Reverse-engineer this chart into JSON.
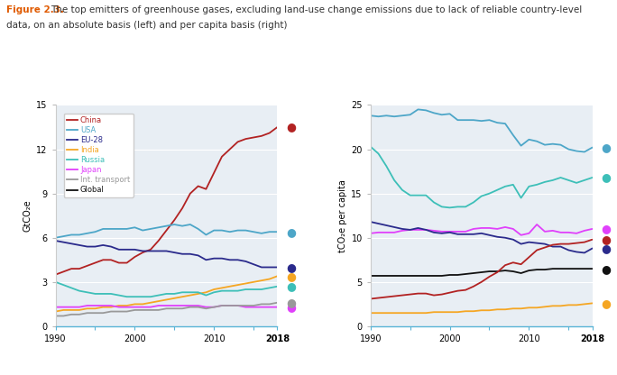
{
  "title_bold": "Figure 2.3.",
  "title_rest": " The top emitters of greenhouse gases, excluding land-use change emissions due to lack of reliable country-level\ndata, on an absolute basis (left) and per capita basis (right)",
  "years": [
    1990,
    1991,
    1992,
    1993,
    1994,
    1995,
    1996,
    1997,
    1998,
    1999,
    2000,
    2001,
    2002,
    2003,
    2004,
    2005,
    2006,
    2007,
    2008,
    2009,
    2010,
    2011,
    2012,
    2013,
    2014,
    2015,
    2016,
    2017,
    2018
  ],
  "left": {
    "ylabel": "GtCO₂e",
    "ylim": [
      0,
      15
    ],
    "yticks": [
      0,
      3,
      6,
      9,
      12,
      15
    ],
    "China": [
      3.5,
      3.7,
      3.9,
      3.9,
      4.1,
      4.3,
      4.5,
      4.5,
      4.3,
      4.3,
      4.7,
      5.0,
      5.2,
      5.8,
      6.5,
      7.2,
      8.0,
      9.0,
      9.5,
      9.3,
      10.4,
      11.5,
      12.0,
      12.5,
      12.7,
      12.8,
      12.9,
      13.1,
      13.5
    ],
    "USA": [
      6.0,
      6.1,
      6.2,
      6.2,
      6.3,
      6.4,
      6.6,
      6.6,
      6.6,
      6.6,
      6.7,
      6.5,
      6.6,
      6.7,
      6.8,
      6.9,
      6.8,
      6.9,
      6.6,
      6.2,
      6.5,
      6.5,
      6.4,
      6.5,
      6.5,
      6.4,
      6.3,
      6.4,
      6.4
    ],
    "EU28": [
      5.8,
      5.7,
      5.6,
      5.5,
      5.4,
      5.4,
      5.5,
      5.4,
      5.2,
      5.2,
      5.2,
      5.1,
      5.1,
      5.1,
      5.1,
      5.0,
      4.9,
      4.9,
      4.8,
      4.5,
      4.6,
      4.6,
      4.5,
      4.5,
      4.4,
      4.2,
      4.0,
      4.0,
      4.0
    ],
    "India": [
      1.0,
      1.1,
      1.1,
      1.1,
      1.2,
      1.2,
      1.3,
      1.3,
      1.4,
      1.4,
      1.5,
      1.5,
      1.6,
      1.7,
      1.8,
      1.9,
      2.0,
      2.1,
      2.2,
      2.3,
      2.5,
      2.6,
      2.7,
      2.8,
      2.9,
      3.0,
      3.1,
      3.2,
      3.4
    ],
    "Russia": [
      3.0,
      2.8,
      2.6,
      2.4,
      2.3,
      2.2,
      2.2,
      2.2,
      2.1,
      2.0,
      2.0,
      2.0,
      2.0,
      2.1,
      2.2,
      2.2,
      2.3,
      2.3,
      2.3,
      2.1,
      2.3,
      2.4,
      2.4,
      2.4,
      2.5,
      2.5,
      2.5,
      2.6,
      2.7
    ],
    "Japan": [
      1.3,
      1.3,
      1.3,
      1.3,
      1.4,
      1.4,
      1.4,
      1.4,
      1.3,
      1.3,
      1.3,
      1.3,
      1.3,
      1.4,
      1.4,
      1.4,
      1.4,
      1.4,
      1.4,
      1.3,
      1.3,
      1.4,
      1.4,
      1.4,
      1.3,
      1.3,
      1.3,
      1.3,
      1.3
    ],
    "IntTrans": [
      0.7,
      0.7,
      0.8,
      0.8,
      0.9,
      0.9,
      0.9,
      1.0,
      1.0,
      1.0,
      1.1,
      1.1,
      1.1,
      1.1,
      1.2,
      1.2,
      1.2,
      1.3,
      1.3,
      1.2,
      1.3,
      1.4,
      1.4,
      1.4,
      1.4,
      1.4,
      1.5,
      1.5,
      1.6
    ]
  },
  "right": {
    "ylabel": "tCO₂e per capita",
    "ylim": [
      0,
      25
    ],
    "yticks": [
      0,
      5,
      10,
      15,
      20,
      25
    ],
    "USA": [
      23.8,
      23.7,
      23.8,
      23.7,
      23.8,
      23.9,
      24.5,
      24.4,
      24.1,
      23.9,
      24.0,
      23.3,
      23.3,
      23.3,
      23.2,
      23.3,
      23.0,
      22.9,
      21.6,
      20.4,
      21.1,
      20.9,
      20.5,
      20.6,
      20.5,
      20.0,
      19.8,
      19.7,
      20.2
    ],
    "Russia": [
      20.3,
      19.5,
      18.1,
      16.5,
      15.4,
      14.8,
      14.8,
      14.8,
      14.0,
      13.5,
      13.4,
      13.5,
      13.5,
      14.0,
      14.7,
      15.0,
      15.4,
      15.8,
      16.0,
      14.5,
      15.8,
      16.0,
      16.3,
      16.5,
      16.8,
      16.5,
      16.2,
      16.5,
      16.8
    ],
    "Japan": [
      10.5,
      10.6,
      10.6,
      10.6,
      10.8,
      10.9,
      10.9,
      10.9,
      10.8,
      10.7,
      10.7,
      10.7,
      10.7,
      11.0,
      11.1,
      11.1,
      11.0,
      11.2,
      11.0,
      10.3,
      10.5,
      11.5,
      10.7,
      10.8,
      10.6,
      10.6,
      10.5,
      10.8,
      11.0
    ],
    "EU28": [
      11.8,
      11.6,
      11.4,
      11.2,
      11.0,
      10.9,
      11.1,
      10.9,
      10.6,
      10.5,
      10.6,
      10.4,
      10.4,
      10.4,
      10.5,
      10.3,
      10.1,
      10.0,
      9.8,
      9.3,
      9.5,
      9.4,
      9.3,
      9.0,
      9.0,
      8.6,
      8.4,
      8.3,
      8.8
    ],
    "Global": [
      5.7,
      5.7,
      5.7,
      5.7,
      5.7,
      5.7,
      5.7,
      5.7,
      5.7,
      5.7,
      5.8,
      5.8,
      5.9,
      6.0,
      6.1,
      6.2,
      6.2,
      6.3,
      6.2,
      6.0,
      6.3,
      6.4,
      6.4,
      6.5,
      6.5,
      6.5,
      6.5,
      6.5,
      6.5
    ],
    "China": [
      3.1,
      3.2,
      3.3,
      3.4,
      3.5,
      3.6,
      3.7,
      3.7,
      3.5,
      3.6,
      3.8,
      4.0,
      4.1,
      4.5,
      5.0,
      5.6,
      6.1,
      6.9,
      7.2,
      7.0,
      7.8,
      8.6,
      8.9,
      9.2,
      9.3,
      9.3,
      9.4,
      9.5,
      9.8
    ],
    "India": [
      1.5,
      1.5,
      1.5,
      1.5,
      1.5,
      1.5,
      1.5,
      1.5,
      1.6,
      1.6,
      1.6,
      1.6,
      1.7,
      1.7,
      1.8,
      1.8,
      1.9,
      1.9,
      2.0,
      2.0,
      2.1,
      2.1,
      2.2,
      2.3,
      2.3,
      2.4,
      2.4,
      2.5,
      2.6
    ]
  },
  "colors": {
    "China": "#b22222",
    "USA": "#4da6c8",
    "EU28": "#2b2b8c",
    "India": "#f5a623",
    "Russia": "#3dbfb8",
    "Japan": "#e040fb",
    "IntTrans": "#999999",
    "Global": "#111111"
  },
  "legend_labels": {
    "China": "China",
    "USA": "USA",
    "EU28": "EU-28",
    "India": "India",
    "Russia": "Russia",
    "Japan": "Japan",
    "IntTrans": "Int. transport",
    "Global": "Global"
  },
  "legend_colors_text": {
    "China": "#b22222",
    "USA": "#4da6c8",
    "EU28": "#2b2b8c",
    "India": "#f5a623",
    "Russia": "#3dbfb8",
    "Japan": "#e040fb",
    "IntTrans": "#999999",
    "Global": "#111111"
  },
  "bg_color": "#e8eef4",
  "fig_bg": "#ffffff",
  "title_color": "#e05a00",
  "text_color": "#333333",
  "spine_bottom_color": "#5ab4d6",
  "grid_color": "#ffffff",
  "tick_color": "#5ab4d6"
}
